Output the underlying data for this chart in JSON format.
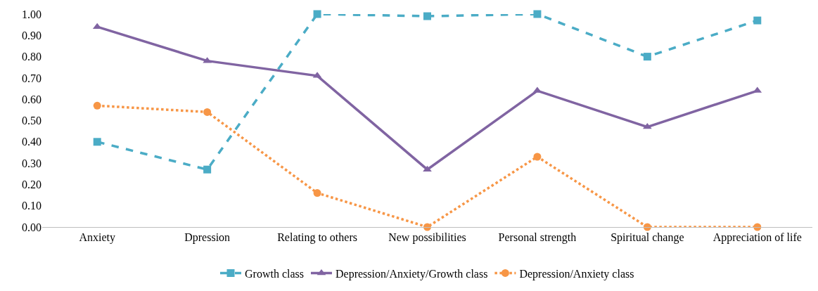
{
  "chart_data": {
    "type": "line",
    "categories": [
      "Anxiety",
      "Dpression",
      "Relating to others",
      "New possibilities",
      "Personal strength",
      "Spiritual change",
      "Appreciation of life"
    ],
    "series": [
      {
        "name": "Growth class",
        "color": "#4bacc6",
        "marker": "square",
        "line_style": "dashed",
        "values": [
          0.4,
          0.27,
          1.0,
          0.99,
          1.0,
          0.8,
          0.97
        ]
      },
      {
        "name": "Depression/Anxiety/Growth class",
        "color": "#8064a2",
        "marker": "triangle",
        "line_style": "solid",
        "values": [
          0.94,
          0.78,
          0.71,
          0.27,
          0.64,
          0.47,
          0.64
        ]
      },
      {
        "name": "Depression/Anxiety class",
        "color": "#f79646",
        "marker": "circle",
        "line_style": "dotted",
        "values": [
          0.57,
          0.54,
          0.16,
          0.0,
          0.33,
          0.0,
          0.0
        ]
      }
    ],
    "ylim": [
      0,
      1
    ],
    "yticks": [
      {
        "value": 0,
        "label": "0.00"
      },
      {
        "value": 0.1,
        "label": "0.10"
      },
      {
        "value": 0.2,
        "label": "0.20"
      },
      {
        "value": 0.3,
        "label": "0.30"
      },
      {
        "value": 0.4,
        "label": "0.40"
      },
      {
        "value": 0.5,
        "label": "0.50"
      },
      {
        "value": 0.6,
        "label": "0.60"
      },
      {
        "value": 0.7,
        "label": "0.70"
      },
      {
        "value": 0.8,
        "label": "0.80"
      },
      {
        "value": 0.9,
        "label": "0.90"
      },
      {
        "value": 1,
        "label": "1.00"
      }
    ],
    "grid": false,
    "legend": "bottom"
  }
}
